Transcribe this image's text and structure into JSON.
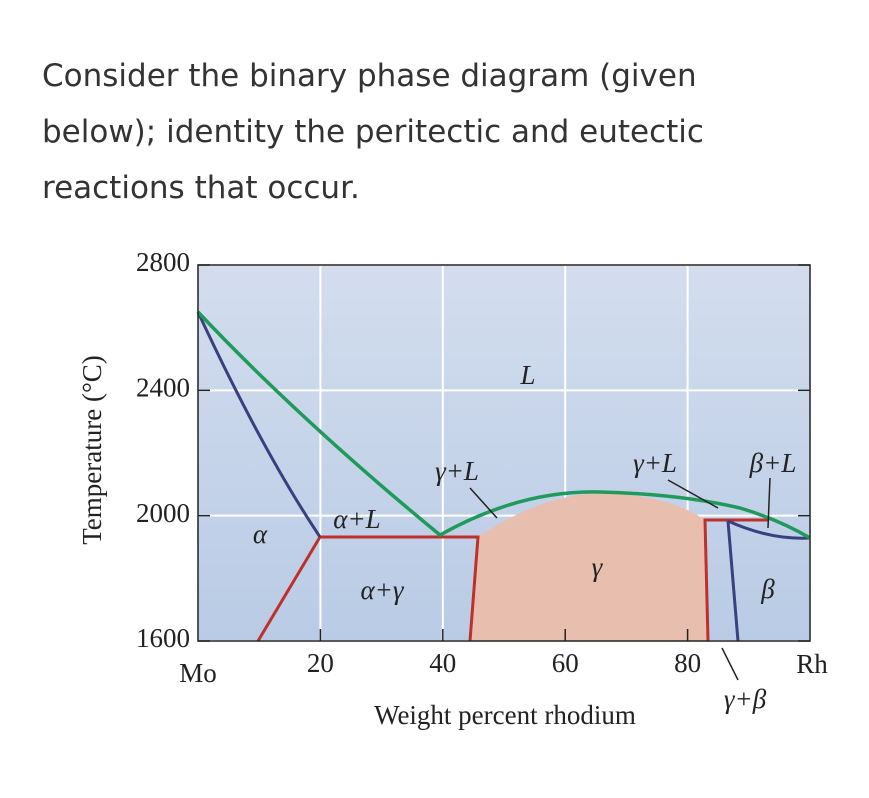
{
  "question": "Consider the binary phase diagram (given below); identity the peritectic and eutectic reactions that occur.",
  "diagram": {
    "y_axis_label": "Temperature (°C)",
    "x_axis_label": "Weight percent rhodium",
    "x_left_label": "Mo",
    "x_right_label": "Rh",
    "xlim": [
      0,
      100
    ],
    "ylim": [
      1600,
      2800
    ],
    "xticks": [
      20,
      40,
      60,
      80
    ],
    "yticks": [
      1600,
      2000,
      2400,
      2800
    ],
    "phase_labels": [
      "L",
      "γ+L",
      "γ+L",
      "β+L",
      "α",
      "α+L",
      "α+γ",
      "γ",
      "β",
      "γ+β"
    ]
  }
}
